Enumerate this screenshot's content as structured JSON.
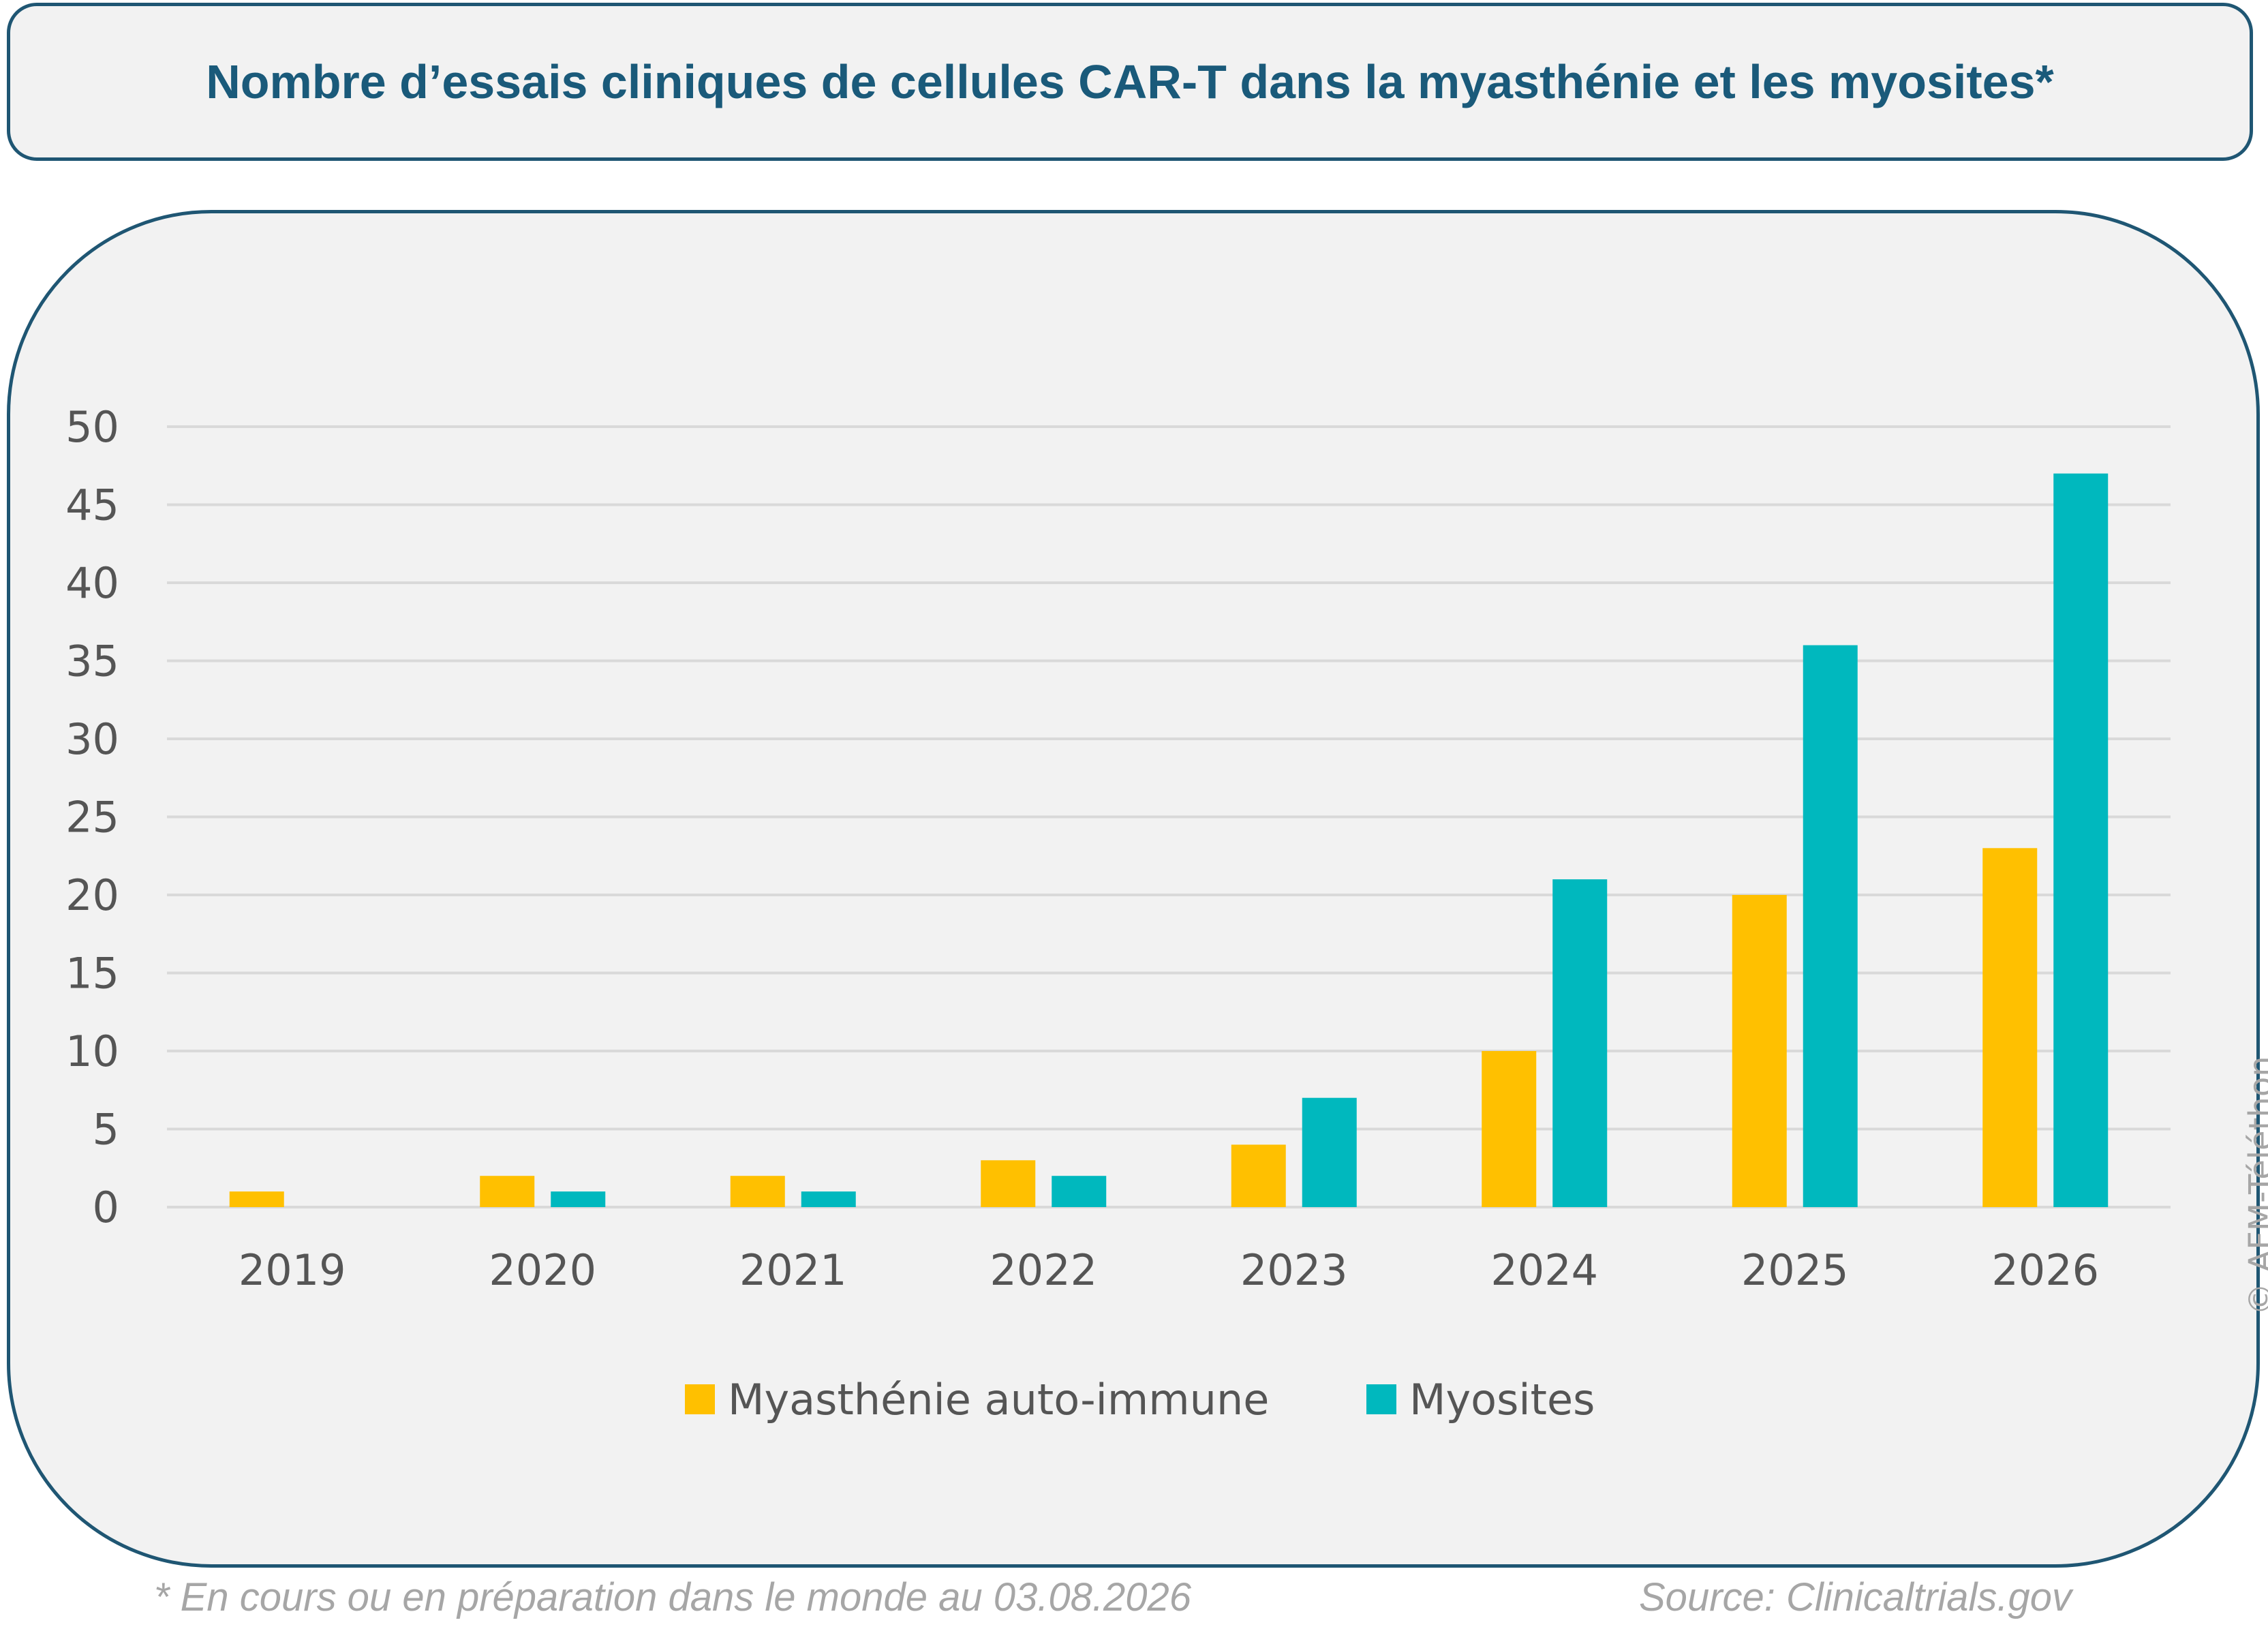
{
  "title": "Nombre d’essais cliniques de cellules CAR-T dans la myasthénie et les myosites*",
  "footnote": "* En cours ou en préparation dans le monde au 03.08.2026",
  "source": "Source: Clinicaltrials.gov",
  "copyright": "© AFM-Téléthon",
  "colors": {
    "myasthenie": "#ffc000",
    "myosites": "#00b8be",
    "grid": "#d9d9d9",
    "frame": "#1f5673",
    "title": "#1a5a7a"
  },
  "chart_data": {
    "type": "bar",
    "title": "Nombre d’essais cliniques de cellules CAR-T dans la myasthénie et les myosites*",
    "categories": [
      "2019",
      "2020",
      "2021",
      "2022",
      "2023",
      "2024",
      "2025",
      "2026"
    ],
    "series": [
      {
        "name": "Myasthénie auto-immune",
        "color": "#ffc000",
        "values": [
          1,
          2,
          2,
          3,
          4,
          10,
          20,
          23
        ]
      },
      {
        "name": "Myosites",
        "color": "#00b8be",
        "values": [
          0,
          1,
          1,
          2,
          7,
          21,
          36,
          47
        ]
      }
    ],
    "ylim": [
      0,
      50
    ],
    "yticks": [
      0,
      5,
      10,
      15,
      20,
      25,
      30,
      35,
      40,
      45,
      50
    ],
    "xlabel": "",
    "ylabel": "",
    "grid": true,
    "legend_position": "bottom"
  }
}
